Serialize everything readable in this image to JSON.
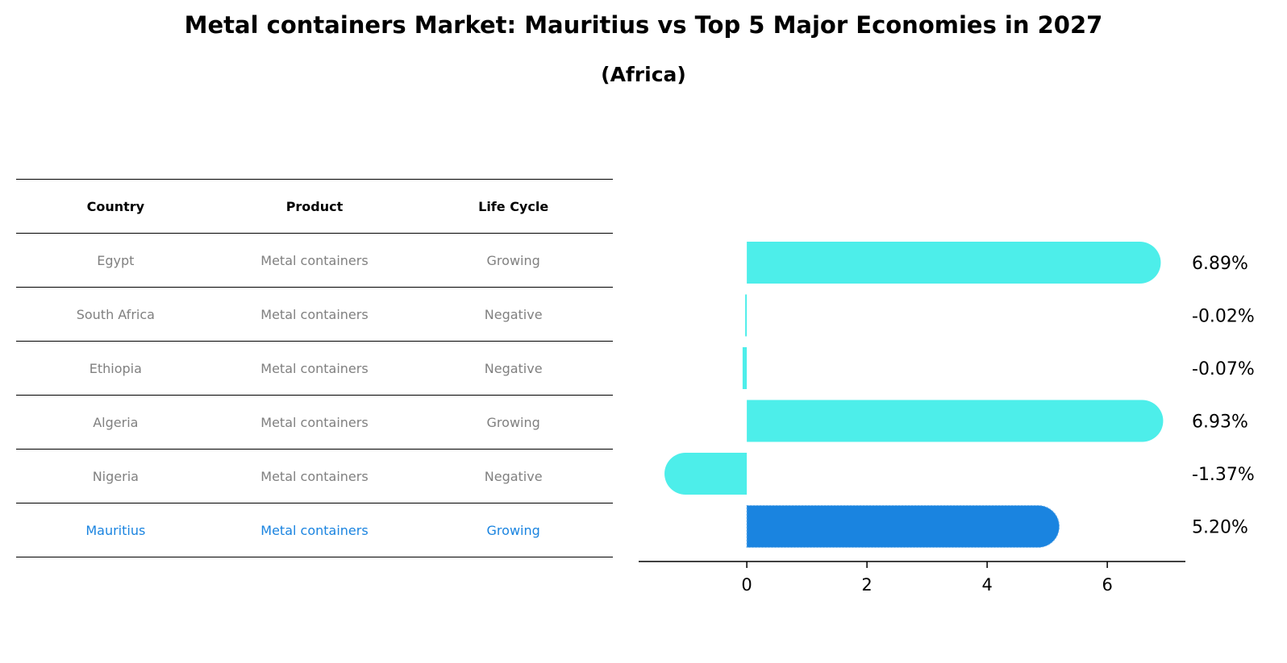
{
  "title": "Metal containers Market: Mauritius vs Top 5 Major Economies in 2027",
  "subtitle": "(Africa)",
  "table": {
    "headers": [
      "Country",
      "Product",
      "Life Cycle"
    ],
    "rows": [
      {
        "country": "Egypt",
        "product": "Metal containers",
        "life_cycle": "Growing"
      },
      {
        "country": "South Africa",
        "product": "Metal containers",
        "life_cycle": "Negative"
      },
      {
        "country": "Ethiopia",
        "product": "Metal containers",
        "life_cycle": "Negative"
      },
      {
        "country": "Algeria",
        "product": "Metal containers",
        "life_cycle": "Growing"
      },
      {
        "country": "Nigeria",
        "product": "Metal containers",
        "life_cycle": "Negative"
      },
      {
        "country": "Mauritius",
        "product": "Metal containers",
        "life_cycle": "Growing"
      }
    ],
    "highlight_color": "#1a84e0",
    "text_color": "#808080"
  },
  "chart_data": {
    "type": "bar",
    "orientation": "horizontal",
    "categories": [
      "Egypt",
      "South Africa",
      "Ethiopia",
      "Algeria",
      "Nigeria",
      "Mauritius"
    ],
    "values": [
      6.89,
      -0.02,
      -0.07,
      6.93,
      -1.37,
      5.2
    ],
    "labels": [
      "6.89%",
      "-0.02%",
      "-0.07%",
      "6.93%",
      "-1.37%",
      "5.20%"
    ],
    "xticks": [
      0,
      2,
      4,
      6
    ],
    "xlim": [
      -1.8,
      7.3
    ],
    "bar_color": "#4deeea",
    "highlight_color": "#1a84e0",
    "highlight_index": 5,
    "grid": false
  }
}
